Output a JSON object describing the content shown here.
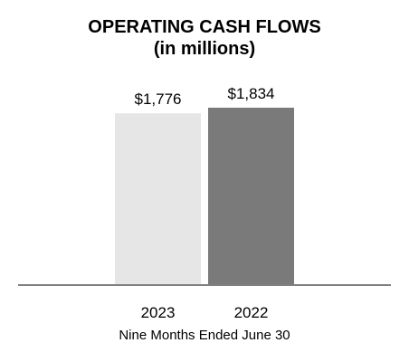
{
  "chart_data": {
    "type": "bar",
    "title": "OPERATING CASH FLOWS",
    "subtitle": "(in millions)",
    "categories": [
      "2023",
      "2022"
    ],
    "values": [
      1776,
      1834
    ],
    "value_labels": [
      "$1,776",
      "$1,834"
    ],
    "xlabel": "Nine Months Ended June 30",
    "ylabel": "",
    "ylim": [
      0,
      1834
    ],
    "grid": false,
    "legend": "none",
    "colors": {
      "bars": [
        "#e6e6e6",
        "#7a7a7a"
      ],
      "baseline": "#808080",
      "text": "#000000"
    }
  }
}
